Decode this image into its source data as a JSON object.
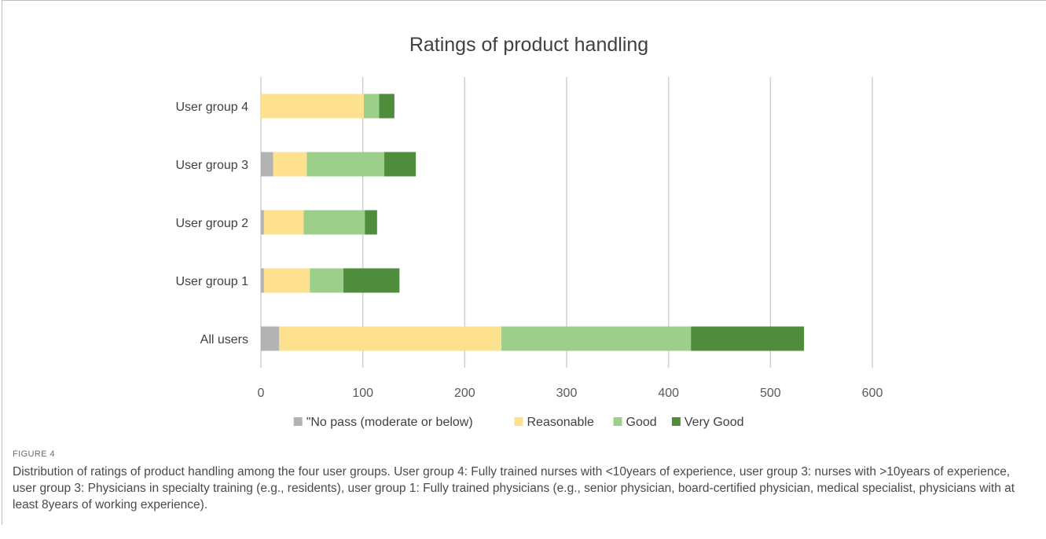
{
  "chart_data": {
    "type": "bar",
    "orientation": "horizontal",
    "stacked": true,
    "title": "Ratings of product handling",
    "categories": [
      "User group 4",
      "User group 3",
      "User group 2",
      "User group 1",
      "All users"
    ],
    "series": [
      {
        "name": "\"No pass (moderate or below)",
        "color": "#b3b3b3",
        "values": [
          0,
          12,
          3,
          3,
          18
        ]
      },
      {
        "name": "Reasonable",
        "color": "#fde18f",
        "values": [
          101,
          33,
          39,
          45,
          218
        ]
      },
      {
        "name": "Good",
        "color": "#9ccf8a",
        "values": [
          15,
          76,
          60,
          33,
          186
        ]
      },
      {
        "name": "Very Good",
        "color": "#4f8d3d",
        "values": [
          15,
          31,
          12,
          55,
          111
        ]
      }
    ],
    "xlim": [
      0,
      600
    ],
    "xticks": [
      0,
      100,
      200,
      300,
      400,
      500,
      600
    ],
    "xlabel": "",
    "ylabel": "",
    "grid": "vertical",
    "legend": "bottom"
  },
  "figure": {
    "label": "FIGURE 4",
    "caption": "Distribution of ratings of product handling among the four user groups. User group 4: Fully trained nurses with <10years of experience, user group 3: nurses with >10years of experience, user group 3: Physicians in specialty training (e.g., residents), user group 1: Fully trained physicians (e.g., senior physician, board-certified physician, medical specialist, physicians with at least 8years of working experience)."
  }
}
